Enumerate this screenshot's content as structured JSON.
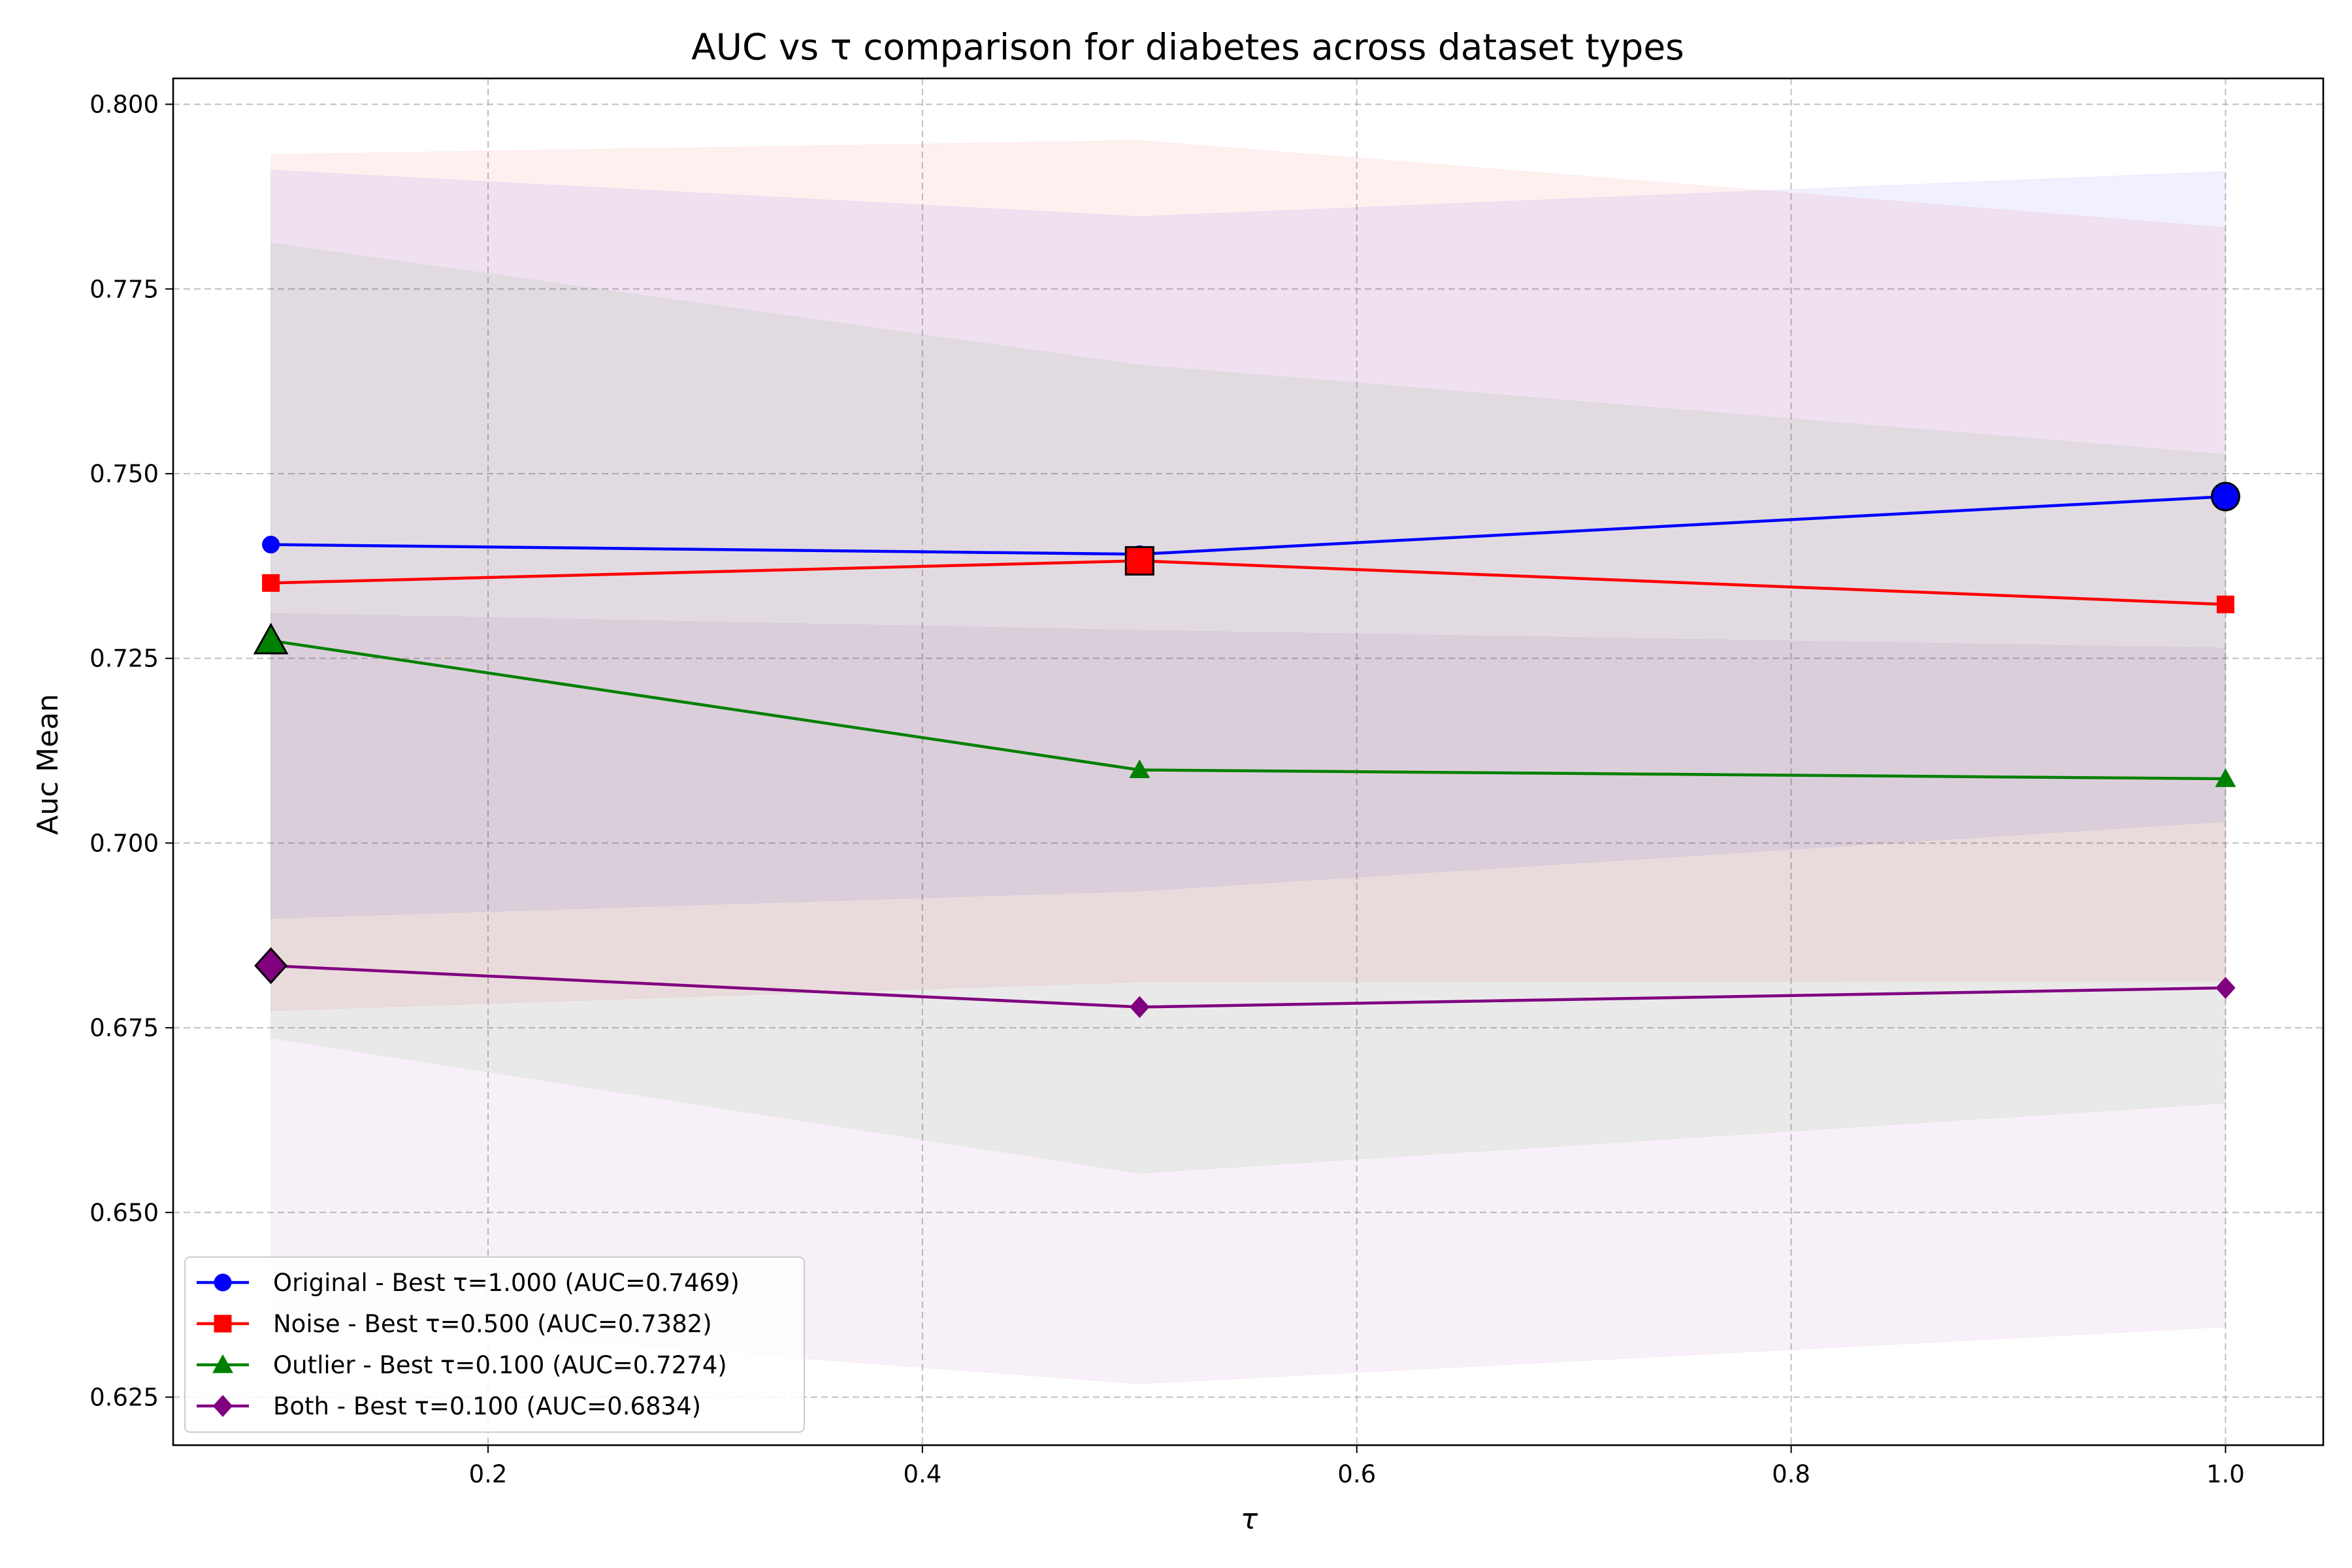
{
  "chart_data": {
    "type": "line",
    "title": "AUC vs τ comparison for diabetes across dataset types",
    "xlabel": "τ",
    "ylabel": "Auc Mean",
    "xlim": [
      0.055,
      1.045
    ],
    "ylim": [
      0.6185,
      0.8035
    ],
    "x_ticks": [
      0.2,
      0.4,
      0.6,
      0.8,
      1.0
    ],
    "x_tick_labels": [
      "0.2",
      "0.4",
      "0.6",
      "0.8",
      "1.0"
    ],
    "y_ticks": [
      0.625,
      0.65,
      0.675,
      0.7,
      0.725,
      0.75,
      0.775,
      0.8
    ],
    "y_tick_labels": [
      "0.625",
      "0.650",
      "0.675",
      "0.700",
      "0.725",
      "0.750",
      "0.775",
      "0.800"
    ],
    "grid": true,
    "legend_position": "bottom-left",
    "x": [
      0.1,
      0.5,
      1.0
    ],
    "series": [
      {
        "name": "Original - Best τ=1.000 (AUC=0.7469)",
        "color": "#0000ff",
        "marker": "circle",
        "values": [
          0.7404,
          0.7391,
          0.7469
        ],
        "band_lower": [
          0.6898,
          0.6935,
          0.7029
        ],
        "band_upper": [
          0.7911,
          0.7848,
          0.7909
        ],
        "best_index": 2
      },
      {
        "name": "Noise - Best τ=0.500 (AUC=0.7382)",
        "color": "#ff0000",
        "marker": "square",
        "values": [
          0.7352,
          0.7382,
          0.7323
        ],
        "band_lower": [
          0.6773,
          0.6812,
          0.6813
        ],
        "band_upper": [
          0.7932,
          0.7951,
          0.7833
        ],
        "best_index": 1
      },
      {
        "name": "Outlier - Best τ=0.100 (AUC=0.7274)",
        "color": "#008000",
        "marker": "triangle",
        "values": [
          0.7274,
          0.7099,
          0.7087
        ],
        "band_lower": [
          0.6736,
          0.6553,
          0.6648
        ],
        "band_upper": [
          0.7812,
          0.7647,
          0.7526
        ],
        "best_index": 0
      },
      {
        "name": "Both - Best τ=0.100 (AUC=0.6834)",
        "color": "#800080",
        "marker": "diamond",
        "values": [
          0.6834,
          0.6778,
          0.6804
        ],
        "band_lower": [
          0.6357,
          0.6268,
          0.6345
        ],
        "band_upper": [
          0.7311,
          0.7288,
          0.7264
        ],
        "best_index": 0
      }
    ]
  }
}
